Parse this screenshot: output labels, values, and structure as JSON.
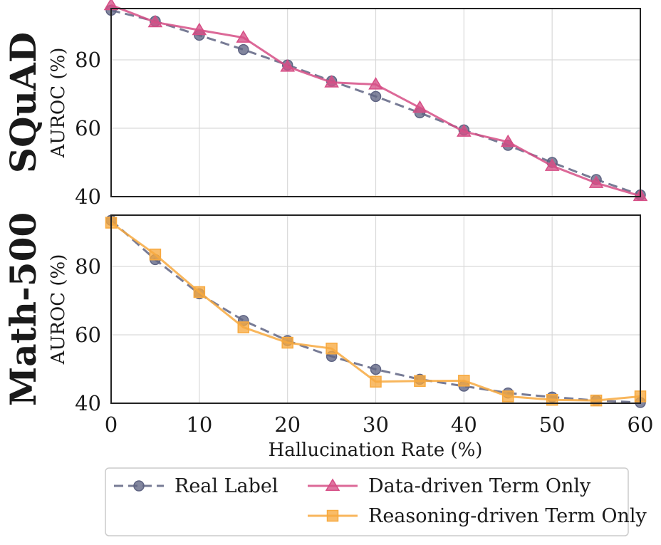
{
  "chart_data": {
    "type": "line",
    "x": [
      0,
      5,
      10,
      15,
      20,
      25,
      30,
      35,
      40,
      45,
      50,
      55,
      60
    ],
    "xlabel": "Hallucination Rate (%)",
    "xlim": [
      0,
      60
    ],
    "xticks": [
      0,
      10,
      20,
      30,
      40,
      50,
      60
    ],
    "ylim": [
      40,
      95
    ],
    "yticks": [
      40,
      60,
      80
    ],
    "grid": true,
    "legend": {
      "placement": "bottom",
      "entries": [
        "Real Label",
        "Data-driven Term Only",
        "Reasoning-driven Term Only"
      ]
    },
    "colors": {
      "real": "#5f6483",
      "data": "#d64f86",
      "reasoning": "#f7a93f"
    },
    "panels": [
      {
        "row_label": "SQuAD",
        "ylabel": "AUROC (%)",
        "series": [
          {
            "key": "real",
            "name": "Real Label",
            "marker": "circle",
            "style": "dashed",
            "values": [
              94.5,
              91.3,
              87.2,
              83.0,
              78.5,
              73.8,
              69.3,
              64.5,
              59.5,
              55.0,
              50.0,
              45.0,
              40.5
            ]
          },
          {
            "key": "data",
            "name": "Data-driven Term Only",
            "marker": "triangle",
            "style": "solid",
            "values": [
              96.0,
              91.0,
              88.7,
              86.5,
              78.0,
              73.4,
              72.8,
              66.0,
              59.0,
              56.0,
              49.0,
              44.0,
              40.2
            ]
          }
        ]
      },
      {
        "row_label": "Math-500",
        "ylabel": "AUROC (%)",
        "series": [
          {
            "key": "real",
            "name": "Real Label",
            "marker": "circle",
            "style": "dashed",
            "values": [
              93.5,
              82.0,
              72.0,
              64.2,
              58.3,
              53.7,
              49.9,
              47.0,
              45.0,
              43.0,
              41.8,
              40.8,
              40.2
            ]
          },
          {
            "key": "reasoning",
            "name": "Reasoning-driven Term Only",
            "marker": "square",
            "style": "solid",
            "values": [
              92.8,
              83.5,
              72.5,
              62.2,
              57.7,
              56.0,
              46.3,
              46.5,
              46.6,
              42.0,
              41.0,
              40.8,
              42.0
            ]
          }
        ]
      }
    ]
  }
}
